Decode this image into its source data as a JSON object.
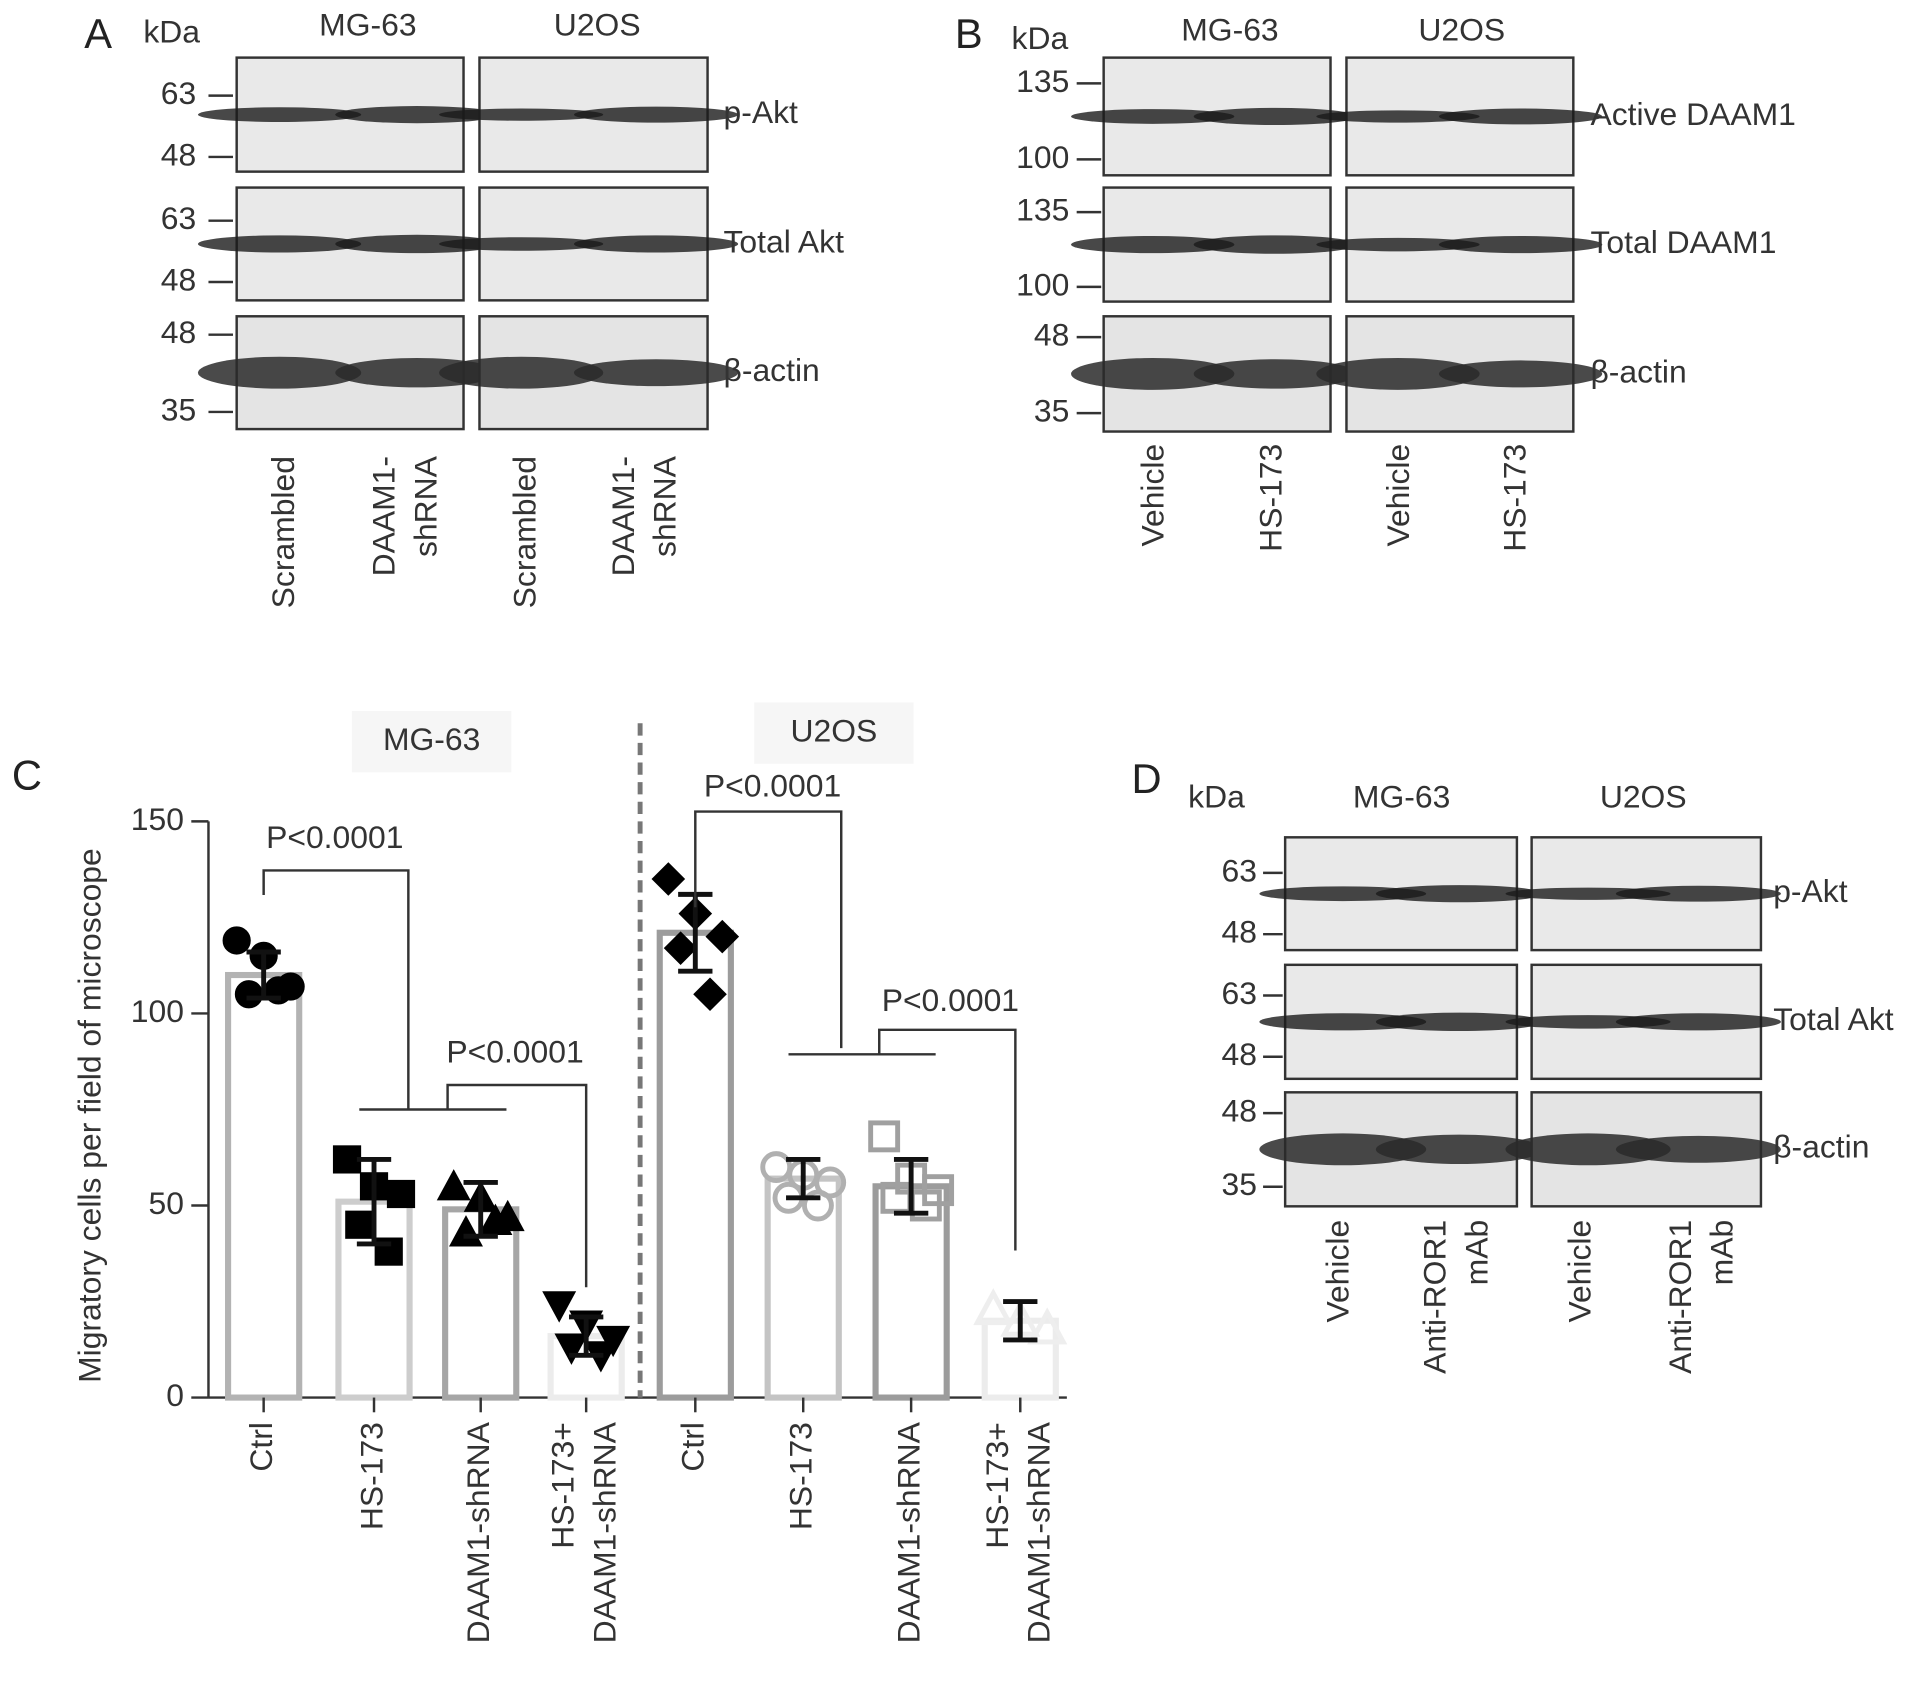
{
  "panels": [
    {
      "letter": "A",
      "unit": "kDa",
      "groups": [
        "MG-63",
        "U2OS"
      ],
      "rows": [
        {
          "label": "p-Akt",
          "markers": [
            63,
            48
          ]
        },
        {
          "label": "Total Akt",
          "markers": [
            63,
            48
          ]
        },
        {
          "label": "β-actin",
          "markers": [
            48,
            35
          ]
        }
      ],
      "lanes": [
        [
          "Scrambled"
        ],
        [
          "DAAM1-",
          "shRNA"
        ],
        [
          "Scrambled"
        ],
        [
          "DAAM1-",
          "shRNA"
        ]
      ]
    },
    {
      "letter": "B",
      "unit": "kDa",
      "groups": [
        "MG-63",
        "U2OS"
      ],
      "rows": [
        {
          "label": "Active DAAM1",
          "markers": [
            135,
            100
          ]
        },
        {
          "label": "Total DAAM1",
          "markers": [
            135,
            100
          ]
        },
        {
          "label": "β-actin",
          "markers": [
            48,
            35
          ]
        }
      ],
      "lanes": [
        [
          "Vehicle"
        ],
        [
          "HS-173"
        ],
        [
          "Vehicle"
        ],
        [
          "HS-173"
        ]
      ]
    },
    {
      "letter": "D",
      "unit": "kDa",
      "groups": [
        "MG-63",
        "U2OS"
      ],
      "rows": [
        {
          "label": "p-Akt",
          "markers": [
            63,
            48
          ]
        },
        {
          "label": "Total Akt",
          "markers": [
            63,
            48
          ]
        },
        {
          "label": "β-actin",
          "markers": [
            48,
            35
          ]
        }
      ],
      "lanes": [
        [
          "Vehicle"
        ],
        [
          "Anti-ROR1",
          "mAb"
        ],
        [
          "Vehicle"
        ],
        [
          "Anti-ROR1",
          "mAb"
        ]
      ]
    }
  ],
  "chart_data": {
    "type": "bar",
    "letter": "C",
    "ylabel": "Migratory cells per field of microscope",
    "ylim": [
      0,
      150
    ],
    "yticks": [
      0,
      50,
      100,
      150
    ],
    "groups": [
      {
        "name": "MG-63",
        "categories": [
          [
            "Ctrl"
          ],
          [
            "HS-173"
          ],
          [
            "DAAM1-shRNA"
          ],
          [
            "HS-173+",
            "DAAM1-shRNA"
          ]
        ],
        "values": [
          110,
          51,
          49,
          16
        ],
        "errors": [
          6,
          11,
          7,
          5
        ],
        "colors": [
          "#b3b3b3",
          "#cdcdcd",
          "#a6a6a6",
          "#ececec"
        ],
        "markers": [
          "circle",
          "square",
          "triangle",
          "triangle-down"
        ],
        "point_colors": [
          "#000000",
          "#000000",
          "#000000",
          "#000000"
        ],
        "points": [
          [
            119,
            115,
            107,
            105,
            106
          ],
          [
            62,
            55,
            53,
            45,
            38
          ],
          [
            55,
            52,
            47,
            43,
            46
          ],
          [
            24,
            19,
            15,
            13,
            11
          ]
        ]
      },
      {
        "name": "U2OS",
        "categories": [
          [
            "Ctrl"
          ],
          [
            "HS-173"
          ],
          [
            "DAAM1-shRNA"
          ],
          [
            "HS-173+",
            "DAAM1-shRNA"
          ]
        ],
        "values": [
          121,
          57,
          55,
          20
        ],
        "errors": [
          10,
          5,
          7,
          5
        ],
        "colors": [
          "#9c9c9c",
          "#c4c4c4",
          "#9c9c9c",
          "#ececec"
        ],
        "markers": [
          "diamond",
          "circle",
          "square",
          "triangle"
        ],
        "point_colors": [
          "#000000",
          "#b0b0b0",
          "#a0a0a0",
          "#eeeeee"
        ],
        "points": [
          [
            135,
            126,
            120,
            117,
            105
          ],
          [
            60,
            58,
            56,
            52,
            50
          ],
          [
            68,
            57,
            54,
            52,
            50
          ],
          [
            23,
            20,
            18
          ]
        ]
      }
    ],
    "annotations": [
      "P<0.0001",
      "P<0.0001",
      "P<0.0001",
      "P<0.0001"
    ]
  }
}
